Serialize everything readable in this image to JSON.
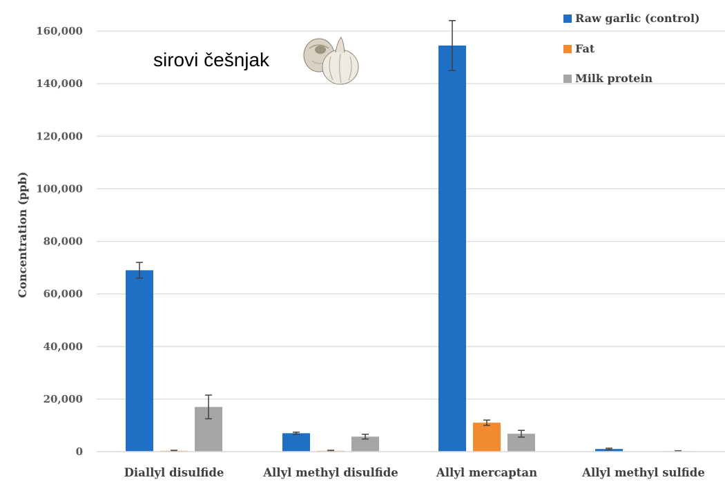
{
  "chart_data": {
    "type": "bar",
    "annotation": "sirovi češnjak",
    "ylabel": "Concentration (ppb)",
    "ylim": [
      0,
      160000
    ],
    "yticks": [
      0,
      20000,
      40000,
      60000,
      80000,
      100000,
      120000,
      140000,
      160000
    ],
    "ytick_labels": [
      "0",
      "20,000",
      "40,000",
      "60,000",
      "80,000",
      "100,000",
      "120,000",
      "140,000",
      "160,000"
    ],
    "grid": true,
    "legend_position": "top-right",
    "categories": [
      "Diallyl disulfide",
      "Allyl methyl disulfide",
      "Allyl mercaptan",
      "Allyl methyl sulfide"
    ],
    "series": [
      {
        "name": "Raw garlic (control)",
        "color": "#1f6fc5",
        "values": [
          69000,
          7000,
          154500,
          1000
        ],
        "errors": [
          3000,
          400,
          9500,
          300
        ]
      },
      {
        "name": "Fat",
        "color": "#f28a30",
        "values": [
          300,
          300,
          11000,
          0
        ],
        "errors": [
          200,
          200,
          1000,
          0
        ]
      },
      {
        "name": "Milk protein",
        "color": "#a6a6a6",
        "values": [
          17000,
          5700,
          6800,
          200
        ],
        "errors": [
          4500,
          900,
          1300,
          100
        ]
      }
    ]
  },
  "garlic_icon": "garlic-bulb-icon"
}
